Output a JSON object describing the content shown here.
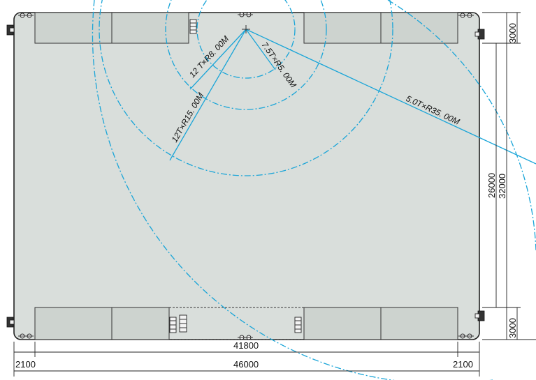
{
  "dimensions": {
    "inner_width": "41800",
    "total_width": "46000",
    "left_margin": "2100",
    "right_margin": "2100",
    "top_band": "3000",
    "middle_span": "26000",
    "total_height": "32000",
    "bottom_band": "3000"
  },
  "crane_labels": {
    "r8": "12 T×R8. 00M",
    "r5": "7.5T×R5. 00M",
    "r15": "12T×R15. 00M",
    "r35": "5.0T×R35. 00M"
  },
  "colors": {
    "floor": "#d9dedb",
    "crane": "#1aa5d8",
    "lines": "#222222"
  }
}
